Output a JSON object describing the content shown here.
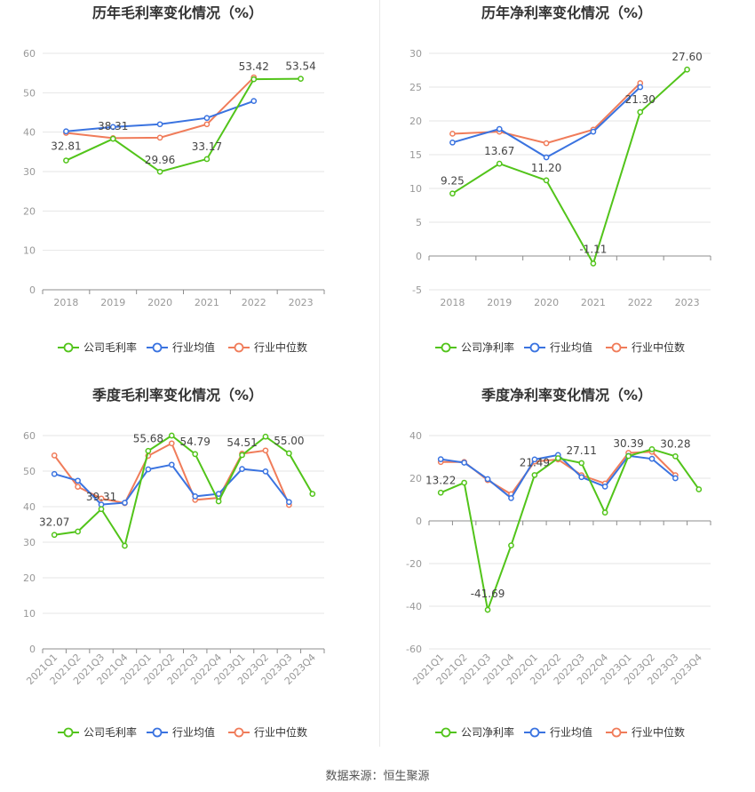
{
  "colors": {
    "company": "#52c41a",
    "avg": "#3a73e0",
    "median": "#f07c5a",
    "grid": "#e6e6e6",
    "axis": "#8c8c8c",
    "tick": "#999999",
    "title": "#333333"
  },
  "source": "数据来源：恒生聚源",
  "chart_data": [
    {
      "type": "line",
      "title": "历年毛利率变化情况（%）",
      "categories": [
        "2018",
        "2019",
        "2020",
        "2021",
        "2022",
        "2023"
      ],
      "ylim": [
        0,
        60
      ],
      "yticks": [
        "0",
        "10",
        "20",
        "30",
        "40",
        "50",
        "60"
      ],
      "grid": true,
      "legend_position": "bottom",
      "series": [
        {
          "name": "公司毛利率",
          "values": [
            32.81,
            38.31,
            29.96,
            33.17,
            53.42,
            53.54
          ],
          "labels": [
            "32.81",
            "38.31",
            "29.96",
            "33.17",
            "53.42",
            "53.54"
          ]
        },
        {
          "name": "行业均值",
          "values": [
            40.2,
            41.3,
            42.0,
            43.6,
            47.9,
            null
          ]
        },
        {
          "name": "行业中位数",
          "values": [
            39.8,
            38.5,
            38.6,
            42.0,
            53.9,
            null
          ]
        }
      ]
    },
    {
      "type": "line",
      "title": "历年净利率变化情况（%）",
      "categories": [
        "2018",
        "2019",
        "2020",
        "2021",
        "2022",
        "2023"
      ],
      "ylim": [
        -5,
        30
      ],
      "yticks": [
        "-5",
        "0",
        "5",
        "10",
        "15",
        "20",
        "25",
        "30"
      ],
      "grid": true,
      "legend_position": "bottom",
      "series": [
        {
          "name": "公司净利率",
          "values": [
            9.25,
            13.67,
            11.2,
            -1.11,
            21.3,
            27.6
          ],
          "labels": [
            "9.25",
            "13.67",
            "11.20",
            "-1.11",
            "21.30",
            "27.60"
          ]
        },
        {
          "name": "行业均值",
          "values": [
            16.8,
            18.8,
            14.6,
            18.4,
            25.0,
            null
          ]
        },
        {
          "name": "行业中位数",
          "values": [
            18.1,
            18.4,
            16.7,
            18.7,
            25.6,
            null
          ]
        }
      ]
    },
    {
      "type": "line",
      "title": "季度毛利率变化情况（%）",
      "categories": [
        "2021Q1",
        "2021Q2",
        "2021Q3",
        "2021Q4",
        "2022Q1",
        "2022Q2",
        "2022Q3",
        "2022Q4",
        "2023Q1",
        "2023Q2",
        "2023Q3",
        "2023Q4"
      ],
      "ylim": [
        0,
        60
      ],
      "yticks": [
        "0",
        "10",
        "20",
        "30",
        "40",
        "50",
        "60"
      ],
      "grid": true,
      "legend_position": "bottom",
      "series": [
        {
          "name": "公司毛利率",
          "values": [
            32.07,
            33.0,
            39.31,
            29.0,
            55.68,
            60.0,
            54.79,
            41.5,
            54.51,
            59.7,
            55.0,
            43.6
          ],
          "labels": [
            "32.07",
            "",
            "39.31",
            "",
            "55.68",
            "",
            "54.79",
            "",
            "54.51",
            "",
            "55.00",
            ""
          ]
        },
        {
          "name": "行业均值",
          "values": [
            49.2,
            47.3,
            40.6,
            41.1,
            50.5,
            51.8,
            42.9,
            43.6,
            50.6,
            49.9,
            41.3,
            null
          ]
        },
        {
          "name": "行业中位数",
          "values": [
            54.4,
            45.6,
            42.3,
            41.0,
            54.3,
            57.8,
            41.9,
            42.5,
            54.9,
            55.8,
            40.5,
            null
          ]
        }
      ]
    },
    {
      "type": "line",
      "title": "季度净利率变化情况（%）",
      "categories": [
        "2021Q1",
        "2021Q2",
        "2021Q3",
        "2021Q4",
        "2022Q1",
        "2022Q2",
        "2022Q3",
        "2022Q4",
        "2023Q1",
        "2023Q2",
        "2023Q3",
        "2023Q4"
      ],
      "ylim": [
        -60,
        40
      ],
      "yticks": [
        "-60",
        "-40",
        "-20",
        "0",
        "20",
        "40"
      ],
      "grid": true,
      "legend_position": "bottom",
      "series": [
        {
          "name": "公司净利率",
          "values": [
            13.22,
            17.9,
            -41.69,
            -11.5,
            21.49,
            29.4,
            27.11,
            3.9,
            30.39,
            33.6,
            30.28,
            14.8
          ],
          "labels": [
            "13.22",
            "",
            "-41.69",
            "",
            "21.49",
            "",
            "27.11",
            "",
            "30.39",
            "",
            "30.28",
            ""
          ]
        },
        {
          "name": "行业均值",
          "values": [
            28.9,
            27.3,
            19.6,
            10.7,
            28.8,
            30.9,
            20.5,
            16.1,
            30.5,
            29.1,
            20.0,
            null
          ]
        },
        {
          "name": "行业中位数",
          "values": [
            27.6,
            27.6,
            19.1,
            12.5,
            27.8,
            28.8,
            21.4,
            17.5,
            31.9,
            32.4,
            21.4,
            null
          ]
        }
      ]
    }
  ]
}
